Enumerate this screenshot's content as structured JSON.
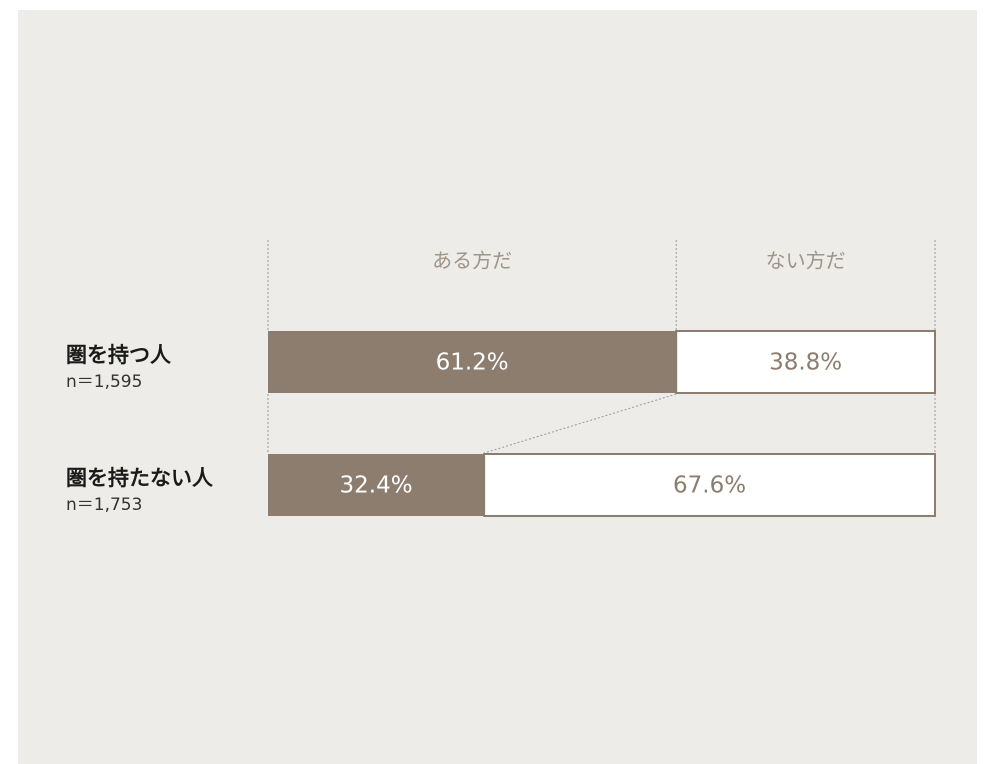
{
  "chart_data": {
    "type": "stacked-bar-100",
    "categories": [
      "圏を持つ人",
      "圏を持たない人"
    ],
    "sample_sizes": [
      "n＝1,595",
      "n＝1,753"
    ],
    "xlim": [
      0,
      100
    ],
    "series": [
      {
        "name": "ある方だ",
        "color": "#8c7d6e",
        "values": [
          61.2,
          32.4
        ],
        "value_labels": [
          "61.2%",
          "32.4%"
        ]
      },
      {
        "name": "ない方だ",
        "color": "#ffffff",
        "values": [
          38.8,
          67.6
        ],
        "value_labels": [
          "38.8%",
          "67.6%"
        ]
      }
    ]
  }
}
